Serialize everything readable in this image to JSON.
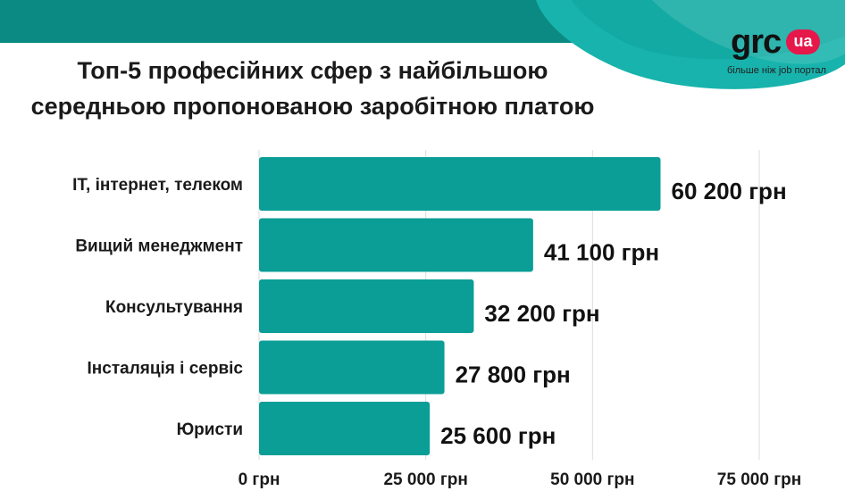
{
  "colors": {
    "bar": "#0a9e97",
    "band_dark": "#0b8a83",
    "band_light": "#17b3ac",
    "logo_badge": "#e6174a"
  },
  "logo": {
    "text": "grc",
    "badge": "ua",
    "tagline": "більше ніж job портал",
    "icon": "grc-logo-icon"
  },
  "chart_data": {
    "type": "bar",
    "orientation": "horizontal",
    "title": [
      "Топ-5 професійних сфер з найбільшою",
      "середньою пропонованою заробітною платою"
    ],
    "categories": [
      "ІТ, інтернет, телеком",
      "Вищий менеджмент",
      "Консультування",
      "Інсталяція і сервіс",
      "Юристи"
    ],
    "values": [
      60200,
      41100,
      32200,
      27800,
      25600
    ],
    "data_labels": [
      "60 200 грн",
      "41 100 грн",
      "32 200 грн",
      "27 800 грн",
      "25 600 грн"
    ],
    "xlim": [
      0,
      75000
    ],
    "xticks": [
      0,
      25000,
      50000,
      75000
    ],
    "xtick_labels": [
      "0 грн",
      "25 000 грн",
      "50 000 грн",
      "75 000 грн"
    ],
    "grid": true,
    "legend": "none"
  }
}
